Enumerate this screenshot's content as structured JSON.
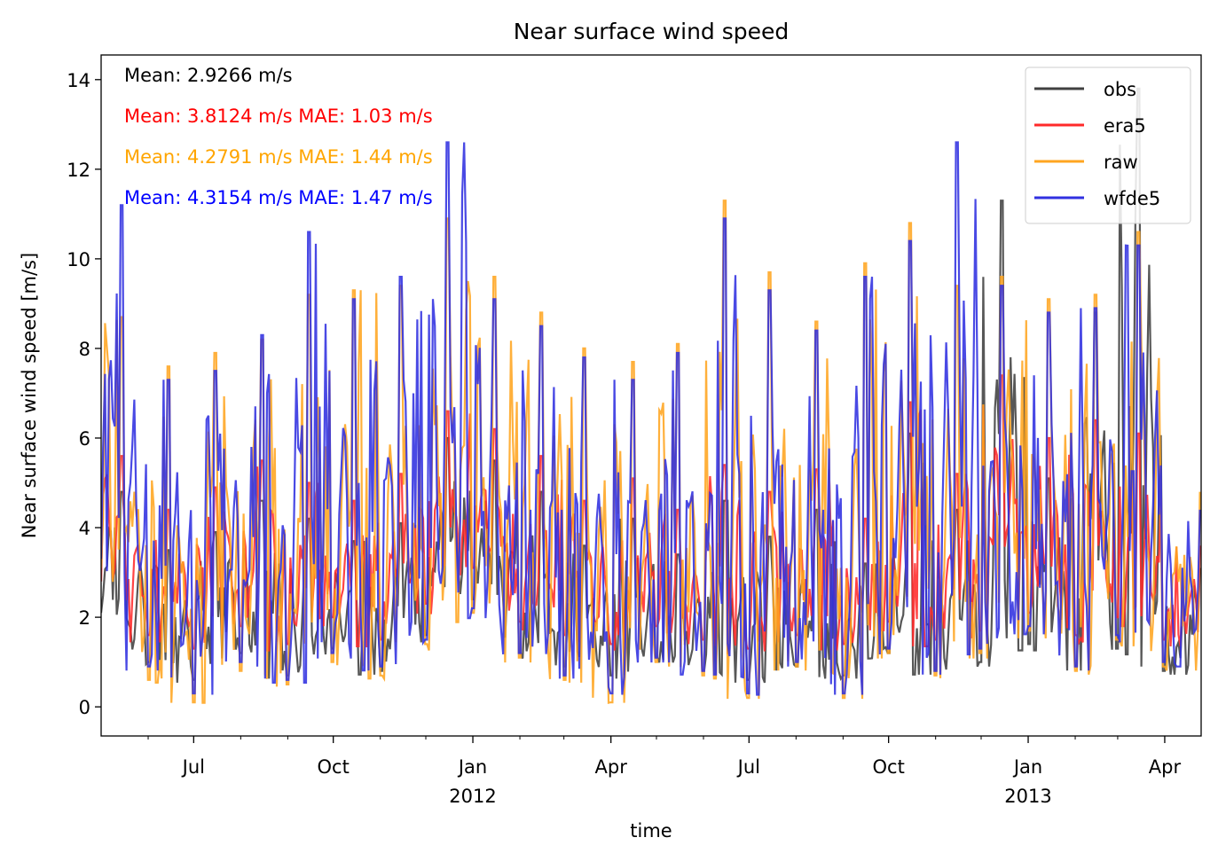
{
  "chart_data": {
    "type": "line",
    "title": "Near surface wind speed",
    "xlabel": "time",
    "ylabel": "Near surface wind speed [m/s]",
    "xlim": [
      "2011-05-01",
      "2013-04-25"
    ],
    "ylim": [
      -0.65,
      14.55
    ],
    "yticks": [
      0,
      2,
      4,
      6,
      8,
      10,
      12,
      14
    ],
    "xticks": [
      {
        "date": "2011-07-01",
        "label": "Jul",
        "sub": ""
      },
      {
        "date": "2011-10-01",
        "label": "Oct",
        "sub": ""
      },
      {
        "date": "2012-01-01",
        "label": "Jan",
        "sub": "2012"
      },
      {
        "date": "2012-04-01",
        "label": "Apr",
        "sub": ""
      },
      {
        "date": "2012-07-01",
        "label": "Jul",
        "sub": ""
      },
      {
        "date": "2012-10-01",
        "label": "Oct",
        "sub": ""
      },
      {
        "date": "2013-01-01",
        "label": "Jan",
        "sub": "2013"
      },
      {
        "date": "2013-04-01",
        "label": "Apr",
        "sub": ""
      }
    ],
    "minor_xticks": [
      "2011-06-01",
      "2011-08-01",
      "2011-09-01",
      "2011-11-01",
      "2011-12-01",
      "2012-02-01",
      "2012-03-01",
      "2012-05-01",
      "2012-06-01",
      "2012-08-01",
      "2012-09-01",
      "2012-11-01",
      "2012-12-01",
      "2013-02-01",
      "2013-03-01"
    ],
    "grid": false,
    "legend": "top-right",
    "annotations": [
      {
        "text": "Mean: 2.9266 m/s",
        "color": "#000000"
      },
      {
        "text": "Mean: 3.8124 m/s MAE: 1.03 m/s",
        "color": "#ff0000"
      },
      {
        "text": "Mean: 4.2791 m/s MAE: 1.44 m/s",
        "color": "#ffa500"
      },
      {
        "text": "Mean: 4.3154 m/s MAE: 1.47 m/s",
        "color": "#0000ff"
      }
    ],
    "series": [
      {
        "name": "obs",
        "color": "#404040",
        "x": [
          "2011-05-01",
          "2011-05-15",
          "2011-06-01",
          "2011-06-15",
          "2011-07-01",
          "2011-07-15",
          "2011-08-01",
          "2011-08-15",
          "2011-09-01",
          "2011-09-15",
          "2011-10-01",
          "2011-10-15",
          "2011-11-01",
          "2011-11-15",
          "2011-12-01",
          "2011-12-15",
          "2012-01-01",
          "2012-01-15",
          "2012-02-01",
          "2012-02-15",
          "2012-03-01",
          "2012-03-15",
          "2012-04-01",
          "2012-04-15",
          "2012-05-01",
          "2012-05-15",
          "2012-06-01",
          "2012-06-15",
          "2012-07-01",
          "2012-07-15",
          "2012-08-01",
          "2012-08-15",
          "2012-09-01",
          "2012-09-15",
          "2012-10-01",
          "2012-10-15",
          "2012-11-01",
          "2012-11-15",
          "2012-12-01",
          "2012-12-15",
          "2013-01-01",
          "2013-01-15",
          "2013-02-01",
          "2013-02-15",
          "2013-03-01",
          "2013-03-15",
          "2013-04-01",
          "2013-04-25"
        ],
        "values": [
          2.1,
          4.8,
          1.0,
          3.5,
          0.6,
          3.9,
          1.2,
          4.6,
          0.7,
          4.2,
          1.3,
          3.7,
          0.8,
          4.1,
          1.6,
          6.0,
          2.4,
          5.5,
          1.2,
          4.8,
          0.9,
          3.6,
          0.7,
          4.2,
          1.1,
          3.4,
          0.8,
          4.6,
          0.6,
          3.8,
          0.9,
          4.4,
          0.7,
          3.2,
          1.2,
          6.1,
          0.8,
          4.4,
          1.0,
          11.3,
          1.4,
          5.1,
          0.9,
          8.8,
          1.3,
          13.8,
          0.8,
          3.1
        ]
      },
      {
        "name": "era5",
        "color": "#ff2a2a",
        "x": [
          "2011-05-01",
          "2011-05-15",
          "2011-06-01",
          "2011-06-15",
          "2011-07-01",
          "2011-07-15",
          "2011-08-01",
          "2011-08-15",
          "2011-09-01",
          "2011-09-15",
          "2011-10-01",
          "2011-10-15",
          "2011-11-01",
          "2011-11-15",
          "2011-12-01",
          "2011-12-15",
          "2012-01-01",
          "2012-01-15",
          "2012-02-01",
          "2012-02-15",
          "2012-03-01",
          "2012-03-15",
          "2012-04-01",
          "2012-04-15",
          "2012-05-01",
          "2012-05-15",
          "2012-06-01",
          "2012-06-15",
          "2012-07-01",
          "2012-07-15",
          "2012-08-01",
          "2012-08-15",
          "2012-09-01",
          "2012-09-15",
          "2012-10-01",
          "2012-10-15",
          "2012-11-01",
          "2012-11-15",
          "2012-12-01",
          "2012-12-15",
          "2013-01-01",
          "2013-01-15",
          "2013-02-01",
          "2013-02-15",
          "2013-03-01",
          "2013-03-15",
          "2013-04-01",
          "2013-04-25"
        ],
        "values": [
          2.8,
          5.6,
          1.6,
          4.4,
          1.3,
          4.9,
          1.8,
          5.5,
          1.4,
          5.0,
          2.0,
          4.6,
          1.5,
          5.2,
          2.3,
          6.6,
          3.1,
          6.2,
          1.9,
          5.6,
          1.6,
          4.6,
          1.4,
          5.1,
          1.8,
          4.4,
          1.5,
          5.4,
          1.3,
          4.8,
          1.6,
          5.3,
          1.4,
          4.2,
          1.9,
          6.8,
          1.5,
          5.2,
          1.7,
          7.4,
          2.1,
          6.0,
          1.6,
          6.4,
          2.0,
          6.1,
          1.5,
          3.6
        ]
      },
      {
        "name": "raw",
        "color": "#ffa520",
        "x": [
          "2011-05-01",
          "2011-05-15",
          "2011-06-01",
          "2011-06-15",
          "2011-07-01",
          "2011-07-15",
          "2011-08-01",
          "2011-08-15",
          "2011-09-01",
          "2011-09-15",
          "2011-10-01",
          "2011-10-15",
          "2011-11-01",
          "2011-11-15",
          "2011-12-01",
          "2011-12-15",
          "2012-01-01",
          "2012-01-15",
          "2012-02-01",
          "2012-02-15",
          "2012-03-01",
          "2012-03-15",
          "2012-04-01",
          "2012-04-15",
          "2012-05-01",
          "2012-05-15",
          "2012-06-01",
          "2012-06-15",
          "2012-07-01",
          "2012-07-15",
          "2012-08-01",
          "2012-08-15",
          "2012-09-01",
          "2012-09-15",
          "2012-10-01",
          "2012-10-15",
          "2012-11-01",
          "2012-11-15",
          "2012-12-01",
          "2012-12-15",
          "2013-01-01",
          "2013-01-15",
          "2013-02-01",
          "2013-02-15",
          "2013-03-01",
          "2013-03-15",
          "2013-04-01",
          "2013-04-25"
        ],
        "values": [
          3.1,
          8.7,
          0.6,
          7.6,
          0.1,
          7.9,
          0.8,
          8.2,
          0.5,
          9.2,
          1.0,
          9.3,
          0.7,
          9.4,
          1.4,
          10.9,
          2.1,
          9.6,
          1.1,
          8.8,
          0.6,
          8.0,
          0.1,
          7.7,
          1.0,
          8.1,
          0.7,
          11.3,
          0.2,
          9.7,
          0.9,
          8.6,
          0.2,
          9.9,
          1.2,
          10.8,
          0.7,
          9.4,
          1.2,
          9.6,
          1.7,
          9.1,
          0.8,
          9.2,
          1.5,
          10.6,
          0.9,
          4.8
        ]
      },
      {
        "name": "wfde5",
        "color": "#3030e0",
        "x": [
          "2011-05-01",
          "2011-05-15",
          "2011-06-01",
          "2011-06-15",
          "2011-07-01",
          "2011-07-15",
          "2011-08-01",
          "2011-08-15",
          "2011-09-01",
          "2011-09-15",
          "2011-10-01",
          "2011-10-15",
          "2011-11-01",
          "2011-11-15",
          "2011-12-01",
          "2011-12-15",
          "2012-01-01",
          "2012-01-15",
          "2012-02-01",
          "2012-02-15",
          "2012-03-01",
          "2012-03-15",
          "2012-04-01",
          "2012-04-15",
          "2012-05-01",
          "2012-05-15",
          "2012-06-01",
          "2012-06-15",
          "2012-07-01",
          "2012-07-15",
          "2012-08-01",
          "2012-08-15",
          "2012-09-01",
          "2012-09-15",
          "2012-10-01",
          "2012-10-15",
          "2012-11-01",
          "2012-11-15",
          "2012-12-01",
          "2012-12-15",
          "2013-01-01",
          "2013-01-15",
          "2013-02-01",
          "2013-02-15",
          "2013-03-01",
          "2013-03-15",
          "2013-04-01",
          "2013-04-25"
        ],
        "values": [
          3.3,
          11.2,
          0.9,
          7.3,
          0.3,
          7.5,
          1.0,
          8.3,
          0.6,
          10.6,
          1.2,
          9.1,
          0.9,
          9.6,
          1.5,
          12.6,
          2.2,
          9.1,
          1.2,
          8.5,
          0.7,
          7.8,
          0.3,
          7.3,
          1.1,
          7.9,
          0.8,
          10.9,
          0.3,
          9.3,
          1.0,
          8.4,
          0.3,
          9.6,
          1.3,
          10.4,
          0.8,
          12.6,
          1.3,
          9.4,
          1.8,
          8.8,
          0.9,
          8.9,
          1.6,
          10.3,
          1.0,
          4.4
        ]
      }
    ]
  }
}
